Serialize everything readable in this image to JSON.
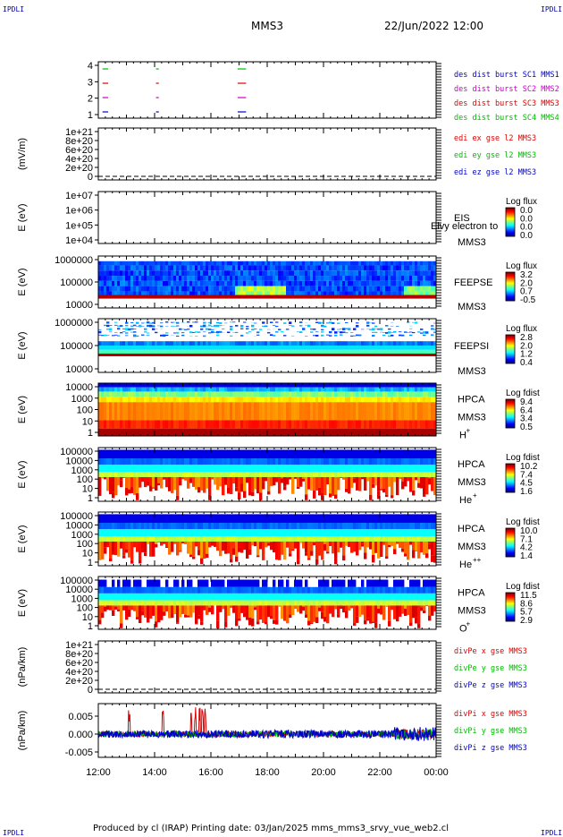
{
  "header": {
    "corner_label": "IPDLI",
    "spacecraft": "MMS3",
    "datetime": "22/Jun/2022 12:00"
  },
  "footer": {
    "text": "Produced by cl (IRAP)   Printing date: 03/Jan/2025   mms_mms3_srvy_vue_web2.cl"
  },
  "colors": {
    "red": "#dd0000",
    "green": "#00bb00",
    "blue": "#0000cc",
    "magenta": "#cc00cc"
  },
  "chart_data": [
    {
      "id": "burst",
      "type": "line",
      "title": "",
      "yticks": [
        "1",
        "2",
        "3",
        "4"
      ],
      "legend": [
        {
          "label": "des dist burst SC1 MMS1",
          "color": "#0000cc"
        },
        {
          "label": "des dist burst SC2 MMS2",
          "color": "#cc00cc"
        },
        {
          "label": "des dist burst SC3 MMS3",
          "color": "#dd0000"
        },
        {
          "label": "des dist burst SC4 MMS4",
          "color": "#00bb00"
        }
      ],
      "segments_hours": [
        [
          12.15,
          12.35
        ],
        [
          14.05,
          14.15
        ],
        [
          16.95,
          17.25
        ]
      ],
      "levels": [
        4,
        3,
        2,
        1
      ]
    },
    {
      "id": "edi",
      "type": "line",
      "ylabel": "(mV/m)",
      "yticks": [
        "0",
        "2e+20",
        "4e+20",
        "6e+20",
        "8e+20",
        "1e+21"
      ],
      "legend": [
        {
          "label": "edi ex gse l2 MMS3",
          "color": "#dd0000"
        },
        {
          "label": "edi ey gse l2 MMS3",
          "color": "#00bb00"
        },
        {
          "label": "edi ez gse l2 MMS3",
          "color": "#0000cc"
        }
      ]
    },
    {
      "id": "eis",
      "type": "heatmap",
      "ylabel": "E (eV)",
      "yticks": [
        "1e+04",
        "1e+05",
        "1e+06",
        "1e+07"
      ],
      "instrument": "EIS",
      "sc": "MMS3",
      "overlay": "Elvy electron to",
      "cb_title": "Log flux",
      "cb_ticks": [
        "0.0",
        "0.0",
        "0.0",
        "0.0"
      ]
    },
    {
      "id": "feepse",
      "type": "heatmap",
      "ylabel": "E (eV)",
      "yticks": [
        "10000",
        "100000",
        "1000000"
      ],
      "instrument": "FEEPSE",
      "sc": "MMS3",
      "cb_title": "Log flux",
      "cb_ticks": [
        "3.2",
        "2.0",
        "0.7",
        "-0.5"
      ]
    },
    {
      "id": "feepsi",
      "type": "heatmap",
      "ylabel": "E (eV)",
      "yticks": [
        "10000",
        "100000",
        "1000000"
      ],
      "instrument": "FEEPSI",
      "sc": "MMS3",
      "cb_title": "Log flux",
      "cb_ticks": [
        "2.8",
        "2.0",
        "1.2",
        "0.4"
      ]
    },
    {
      "id": "hpca_h",
      "type": "heatmap",
      "ylabel": "E (eV)",
      "yticks": [
        "1",
        "10",
        "100",
        "1000",
        "10000"
      ],
      "instrument": "HPCA",
      "sc": "MMS3",
      "species": "H",
      "charge": "+",
      "cb_title": "Log fdist",
      "cb_ticks": [
        "9.4",
        "6.4",
        "3.4",
        "0.5"
      ]
    },
    {
      "id": "hpca_he",
      "type": "heatmap",
      "ylabel": "E (eV)",
      "yticks": [
        "1",
        "10",
        "100",
        "1000",
        "10000",
        "100000"
      ],
      "instrument": "HPCA",
      "sc": "MMS3",
      "species": "He",
      "charge": "+",
      "cb_title": "Log fdist",
      "cb_ticks": [
        "10.2",
        "7.4",
        "4.5",
        "1.6"
      ]
    },
    {
      "id": "hpca_he2",
      "type": "heatmap",
      "ylabel": "E (eV)",
      "yticks": [
        "1",
        "10",
        "100",
        "1000",
        "10000",
        "100000"
      ],
      "instrument": "HPCA",
      "sc": "MMS3",
      "species": "He",
      "charge": "++",
      "cb_title": "Log fdist",
      "cb_ticks": [
        "10.0",
        "7.1",
        "4.2",
        "1.4"
      ]
    },
    {
      "id": "hpca_o",
      "type": "heatmap",
      "ylabel": "E (eV)",
      "yticks": [
        "1",
        "10",
        "100",
        "1000",
        "10000",
        "100000"
      ],
      "instrument": "HPCA",
      "sc": "MMS3",
      "species": "O",
      "charge": "+",
      "cb_title": "Log fdist",
      "cb_ticks": [
        "11.5",
        "8.6",
        "5.7",
        "2.9"
      ]
    },
    {
      "id": "divpe",
      "type": "line",
      "ylabel": "(nPa/km)",
      "yticks": [
        "0",
        "2e+20",
        "4e+20",
        "6e+20",
        "8e+20",
        "1e+21"
      ],
      "legend": [
        {
          "label": "divPe x gse MMS3",
          "color": "#dd0000"
        },
        {
          "label": "divPe y gse MMS3",
          "color": "#00bb00"
        },
        {
          "label": "divPe z gse MMS3",
          "color": "#0000cc"
        }
      ]
    },
    {
      "id": "divpi",
      "type": "line",
      "ylabel": "(nPa/km)",
      "yticks": [
        "-0.005",
        "0.000",
        "0.005"
      ],
      "ylim": [
        -0.0065,
        0.0085
      ],
      "legend": [
        {
          "label": "divPi x gse MMS3",
          "color": "#dd0000"
        },
        {
          "label": "divPi y gse MMS3",
          "color": "#00bb00"
        },
        {
          "label": "divPi z gse MMS3",
          "color": "#0000cc"
        }
      ],
      "spikes_hours": [
        13.1,
        14.3,
        15.3,
        15.45,
        15.6,
        15.7,
        15.8
      ]
    }
  ],
  "xaxis": {
    "ticks": [
      "12:00",
      "14:00",
      "16:00",
      "18:00",
      "20:00",
      "22:00",
      "00:00"
    ],
    "range_hours": [
      12,
      24
    ]
  }
}
